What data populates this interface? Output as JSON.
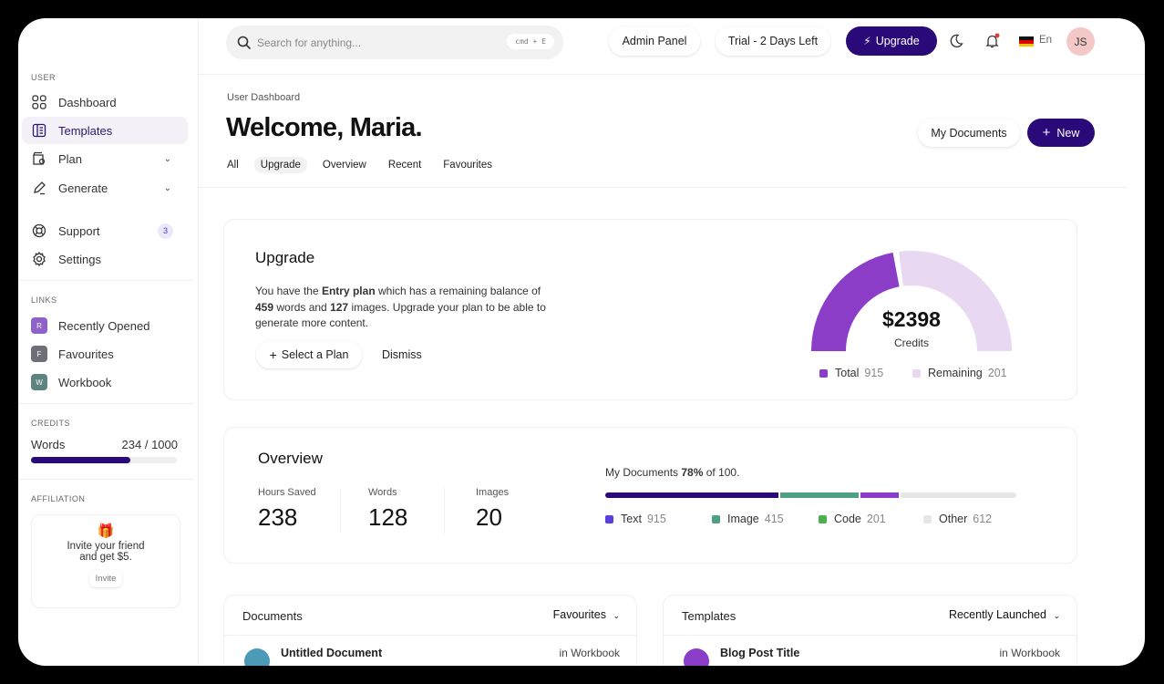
{
  "sidebar": {
    "user_label": "USER",
    "items": [
      {
        "label": "Dashboard",
        "icon": "grid-icon"
      },
      {
        "label": "Templates",
        "icon": "document-icon",
        "active": true
      },
      {
        "label": "Plan",
        "icon": "wallet-icon",
        "chevron": true
      },
      {
        "label": "Generate",
        "icon": "pen-icon",
        "chevron": true
      },
      {
        "label": "Support",
        "icon": "lifebuoy-icon",
        "badge": "3"
      },
      {
        "label": "Settings",
        "icon": "gear-icon"
      }
    ],
    "links_label": "LINKS",
    "links": [
      {
        "letter": "R",
        "label": "Recently Opened",
        "color": "#8e63c9"
      },
      {
        "letter": "F",
        "label": "Favourites",
        "color": "#6f6f7a"
      },
      {
        "letter": "W",
        "label": "Workbook",
        "color": "#5f8380"
      }
    ],
    "credits_label": "CREDITS",
    "credits": {
      "label": "Words",
      "value": "234 / 1000",
      "fill_percent": 68
    },
    "affiliation_label": "AFFILIATION",
    "affiliation": {
      "line1": "Invite your friend",
      "line2": "and get $5.",
      "button": "Invite"
    }
  },
  "topbar": {
    "search_placeholder": "Search for anything...",
    "shortcut": "cmd + E",
    "admin": "Admin Panel",
    "trial": "Trial - 2 Days Left",
    "upgrade": "Upgrade",
    "lang": "En",
    "avatar": "JS"
  },
  "header": {
    "breadcrumb": "User Dashboard",
    "title": "Welcome, Maria.",
    "tabs": [
      "All",
      "Upgrade",
      "Overview",
      "Recent",
      "Favourites"
    ],
    "active_tab": "Upgrade",
    "my_documents": "My Documents",
    "new": "New"
  },
  "upgrade": {
    "title": "Upgrade",
    "text_a": "You have the ",
    "plan": "Entry plan",
    "text_b": " which has a remaining balance of",
    "words": "459",
    "text_c": " words and ",
    "images": "127",
    "text_d": " images. Upgrade your plan to be able to",
    "text_e": "generate more content.",
    "select": "Select a Plan",
    "dismiss": "Dismiss",
    "gauge": {
      "value": "$2398",
      "label": "Credits",
      "fill_fraction": 0.45,
      "colors": [
        "#8b3dc8",
        "#e8d8f2"
      ],
      "legend": [
        {
          "label": "Total",
          "value": "915",
          "color": "#8b3dc8"
        },
        {
          "label": "Remaining",
          "value": "201",
          "color": "#e8d8f2"
        }
      ]
    }
  },
  "overview": {
    "title": "Overview",
    "stats": [
      {
        "label": "Hours Saved",
        "value": "238"
      },
      {
        "label": "Words",
        "value": "128"
      },
      {
        "label": "Images",
        "value": "20"
      }
    ],
    "docs_a": "My Documents ",
    "docs_pct": "78%",
    "docs_b": " of 100.",
    "segments": [
      {
        "label": "Text",
        "value": 915,
        "bar_color": "#2a0a78",
        "dot_color": "#5b3de0"
      },
      {
        "label": "Image",
        "value": 415,
        "bar_color": "#4e9f86",
        "dot_color": "#4e9f86"
      },
      {
        "label": "Code",
        "value": 201,
        "bar_color": "#8b3dc8",
        "dot_color": "#4caf50"
      },
      {
        "label": "Other",
        "value": 612,
        "bar_color": "#e6e6e6",
        "dot_color": "#e6e6e6"
      }
    ]
  },
  "documents": {
    "title": "Documents",
    "filter": "Favourites",
    "row_title": "Untitled Document",
    "row_meta": "in Workbook"
  },
  "templates": {
    "title": "Templates",
    "filter": "Recently Launched",
    "row_title": "Blog Post Title",
    "row_meta": "in Workbook"
  }
}
